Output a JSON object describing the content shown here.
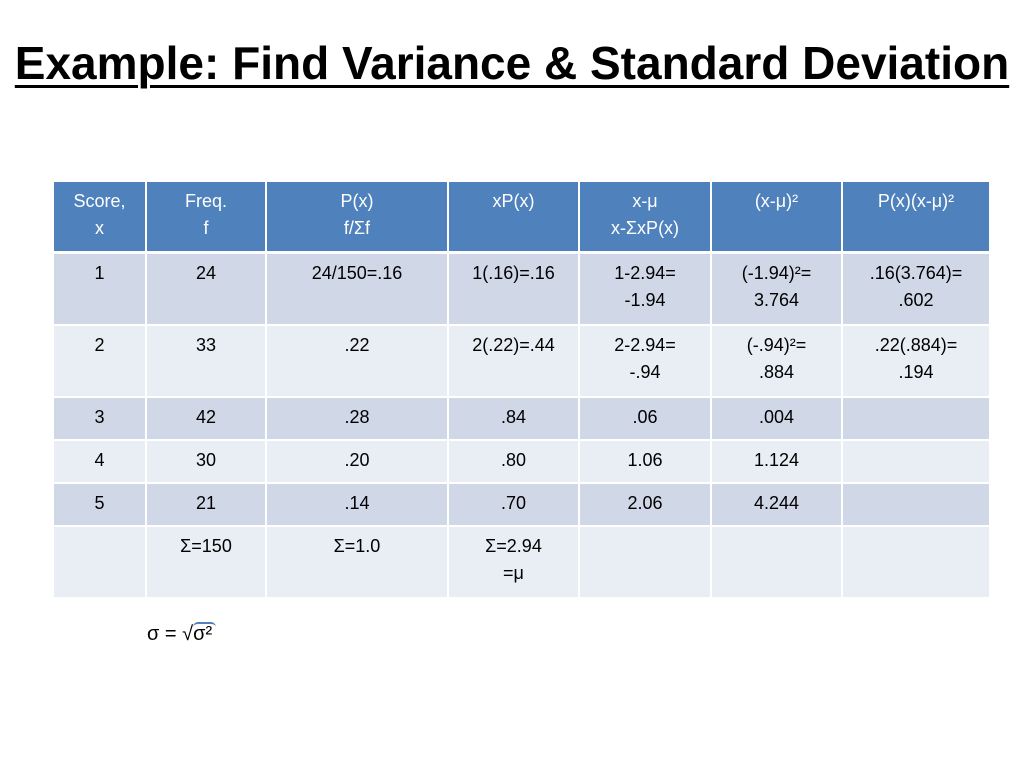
{
  "slide": {
    "title": "Example: Find Variance & Standard Deviation"
  },
  "table": {
    "headers": [
      "Score,\nx",
      "Freq.\nf",
      "P(x)\nf/Σf",
      "xP(x)",
      "x-μ\nx-ΣxP(x)",
      "(x-μ)²",
      "P(x)(x-μ)²"
    ],
    "rows": [
      [
        "1",
        "24",
        "24/150=.16",
        "1(.16)=.16",
        "1-2.94=\n-1.94",
        "(-1.94)²=\n3.764",
        ".16(3.764)=\n.602"
      ],
      [
        "2",
        "33",
        ".22",
        "2(.22)=.44",
        "2-2.94=\n-.94",
        "(-.94)²=\n.884",
        ".22(.884)=\n.194"
      ],
      [
        "3",
        "42",
        ".28",
        ".84",
        ".06",
        ".004",
        ""
      ],
      [
        "4",
        "30",
        ".20",
        ".80",
        "1.06",
        "1.124",
        ""
      ],
      [
        "5",
        "21",
        ".14",
        ".70",
        "2.06",
        "4.244",
        ""
      ],
      [
        "",
        "Σ=150",
        "Σ=1.0",
        "Σ=2.94\n=μ",
        "",
        "",
        ""
      ]
    ]
  },
  "formula": {
    "lhs": "σ = ",
    "root": "√",
    "radicand": "σ²"
  },
  "colors": {
    "header_bg": "#4f81bd",
    "row_odd_bg": "#d0d8e8",
    "row_even_bg": "#e9edf4"
  }
}
